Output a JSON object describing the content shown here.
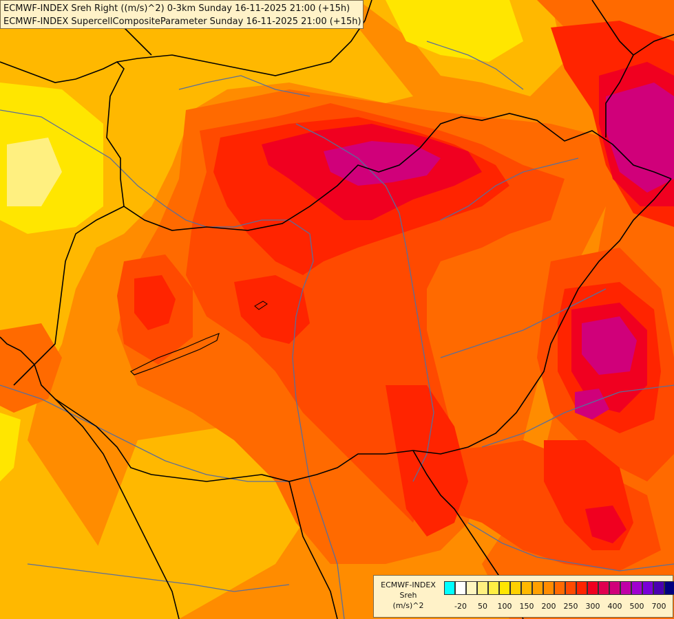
{
  "title": {
    "line1": "ECMWF-INDEX Sreh Right ((m/s)^2) 0-3km Sunday 16-11-2025 21:00 (+15h)",
    "line2": "ECMWF-INDEX SupercellCompositeParameter Sunday 16-11-2025 21:00 (+15h)"
  },
  "legend": {
    "line1": "ECMWF-INDEX",
    "line2": "Sreh",
    "line3": "(m/s)^2",
    "colors": [
      "#00ffff",
      "#ffffff",
      "#fff6c0",
      "#fff080",
      "#ffee44",
      "#ffe600",
      "#ffd000",
      "#ffb800",
      "#ffa000",
      "#ff8c00",
      "#ff6a00",
      "#ff4a00",
      "#ff2400",
      "#f00020",
      "#e00050",
      "#d0007a",
      "#c000a8",
      "#a000d0",
      "#7a00d8",
      "#4a00b0",
      "#000080"
    ],
    "ticks": [
      "-20",
      "50",
      "100",
      "150",
      "200",
      "250",
      "300",
      "400",
      "500",
      "700"
    ]
  },
  "map": {
    "colors": {
      "yellow": "#ffe600",
      "light_orange": "#ffb800",
      "orange": "#ff8c00",
      "dark_orange": "#ff6a00",
      "red_orange": "#ff4a00",
      "red": "#ff2400",
      "crimson": "#f00020",
      "magenta": "#d0007a",
      "border": "#000000",
      "river": "#5a6e9a"
    }
  }
}
